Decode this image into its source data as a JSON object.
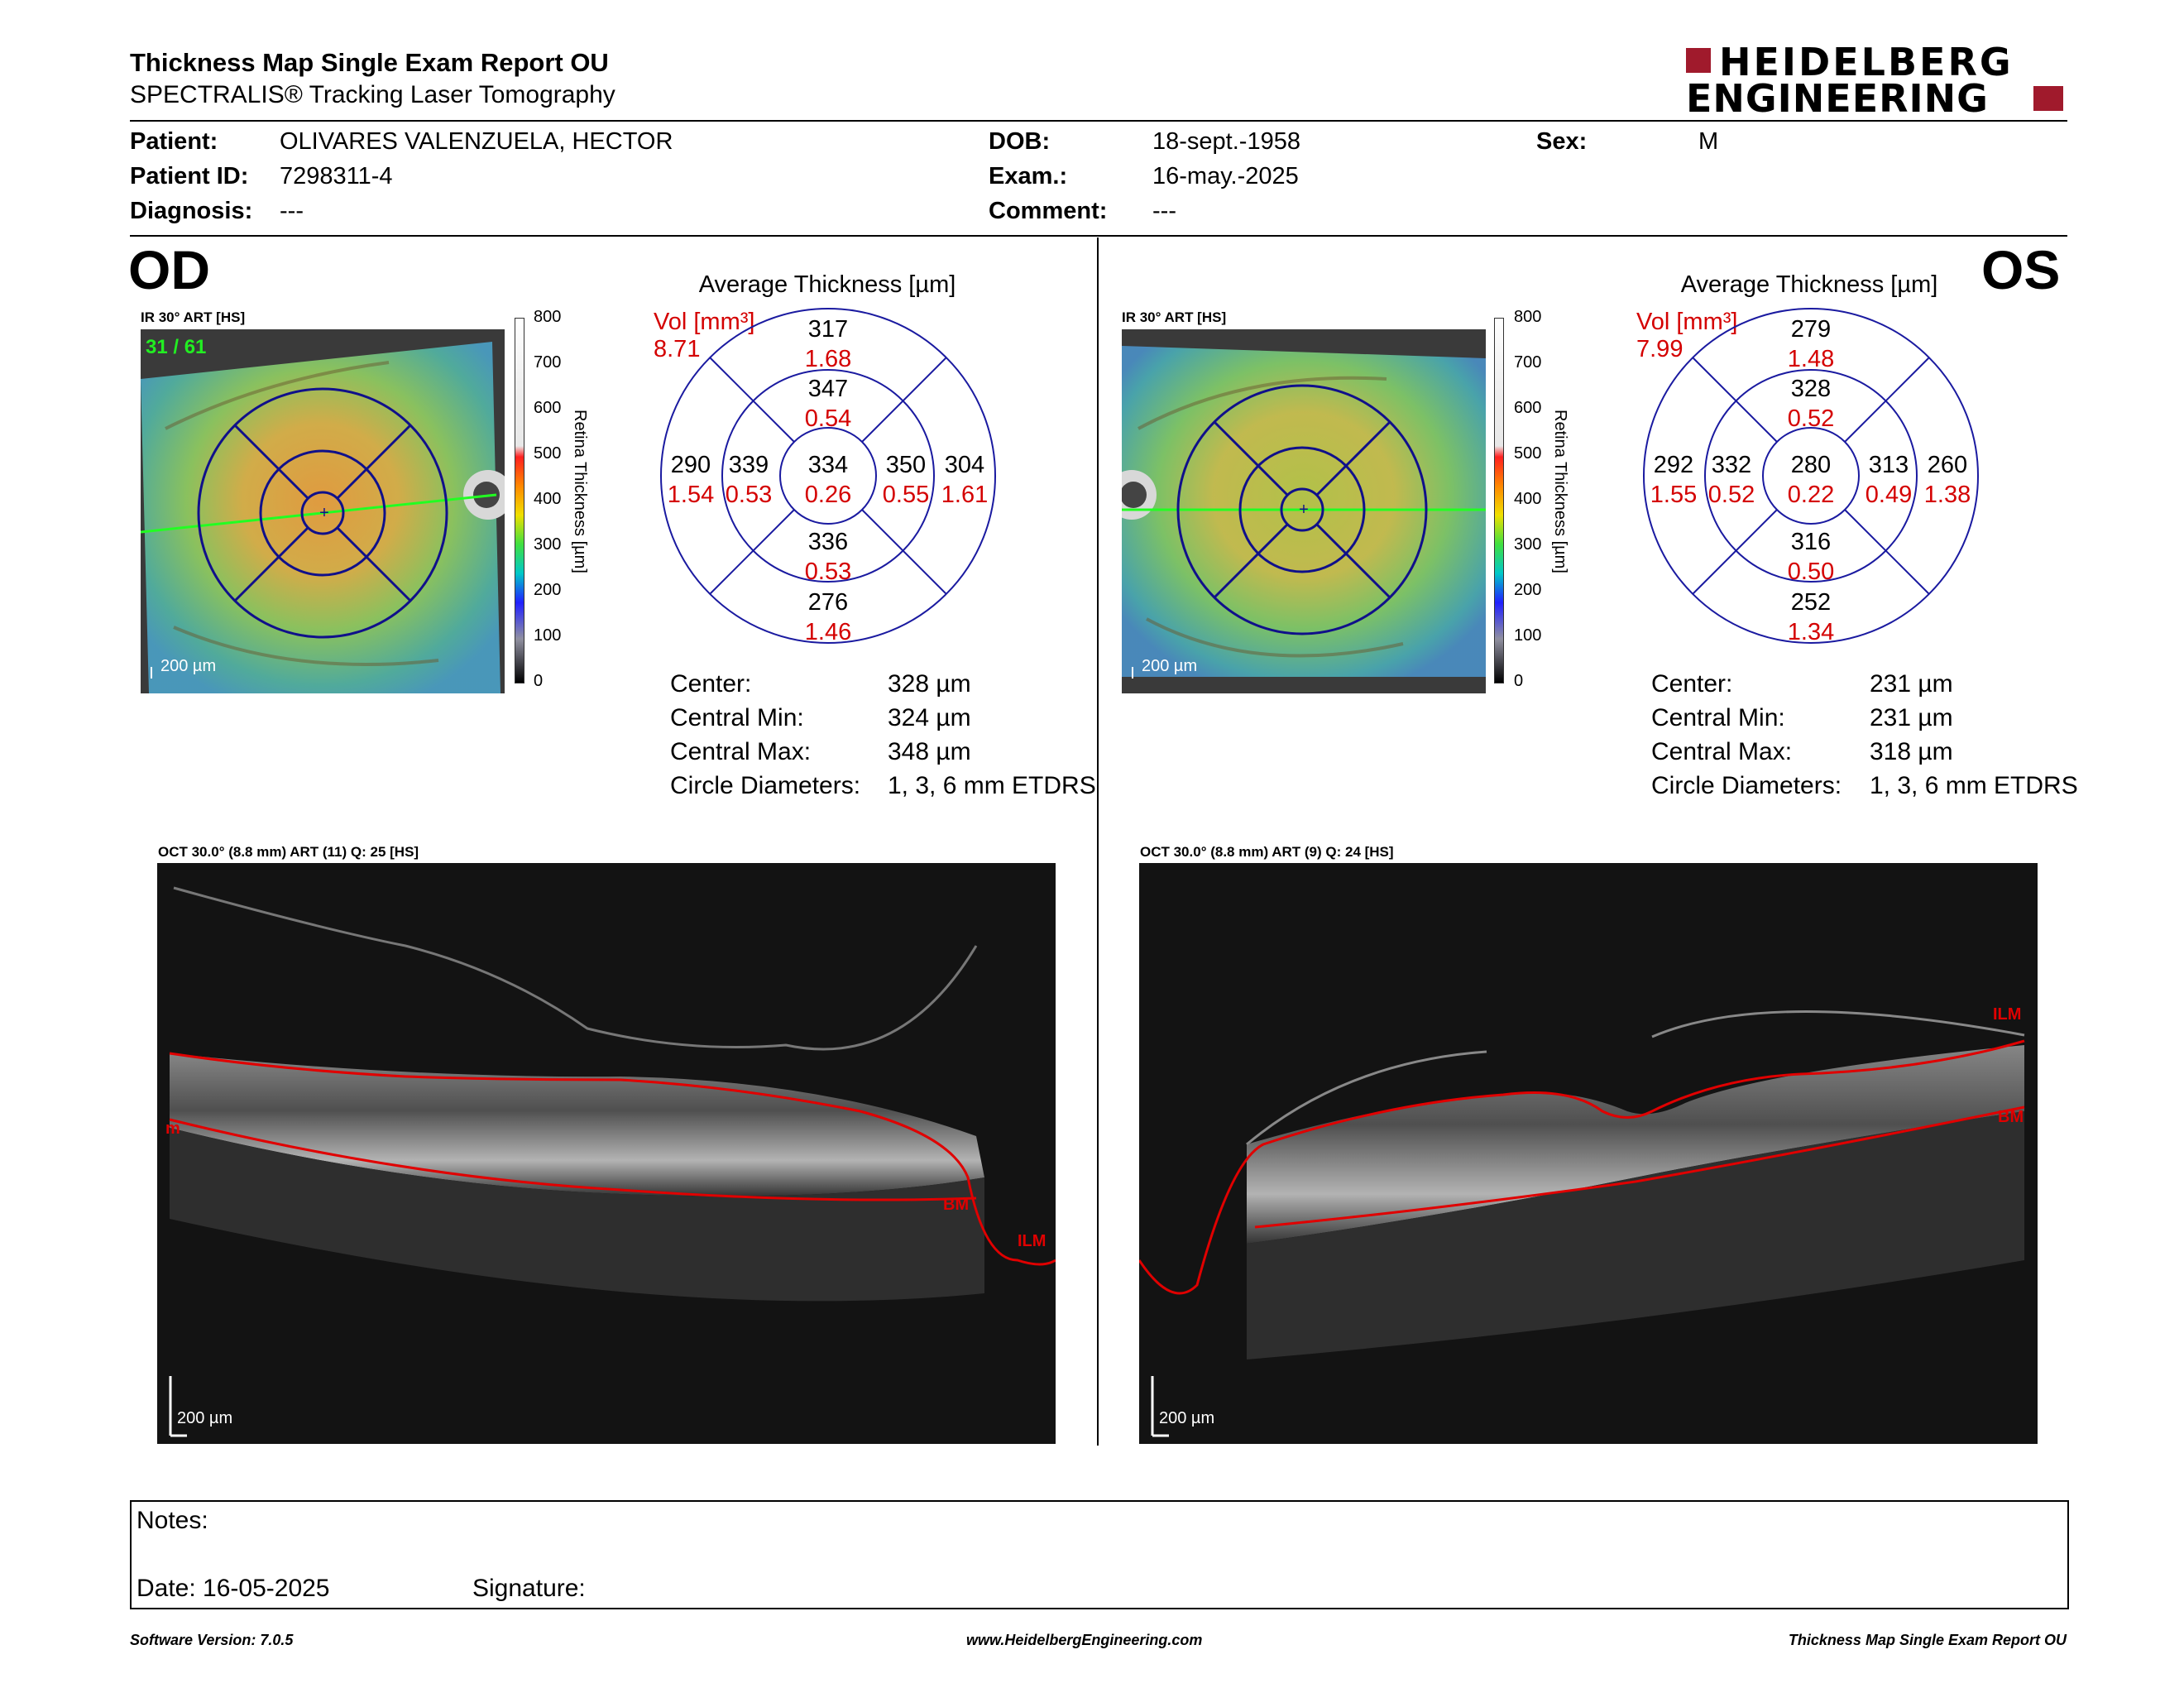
{
  "header": {
    "title": "Thickness Map Single Exam Report OU",
    "subtitle": "SPECTRALIS® Tracking Laser Tomography",
    "logo_line1": "HEIDELBERG",
    "logo_line2": "ENGINEERING"
  },
  "patient": {
    "patient_label": "Patient:",
    "patient_value": "OLIVARES VALENZUELA, HECTOR",
    "id_label": "Patient ID:",
    "id_value": "7298311-4",
    "diagnosis_label": "Diagnosis:",
    "diagnosis_value": "---",
    "dob_label": "DOB:",
    "dob_value": "18-sept.-1958",
    "exam_label": "Exam.:",
    "exam_value": "16-may.-2025",
    "comment_label": "Comment:",
    "comment_value": "---",
    "sex_label": "Sex:",
    "sex_value": "M"
  },
  "scale": {
    "ticks": [
      "800",
      "700",
      "600",
      "500",
      "400",
      "300",
      "200",
      "100",
      "0"
    ],
    "title": "Retina Thickness [µm]"
  },
  "od": {
    "eye": "OD",
    "ir_label": "IR 30° ART [HS]",
    "frame_counter": "31 / 61",
    "ir_scalebar": "200 µm",
    "avg_title": "Average Thickness [µm]",
    "vol_label": "Vol [mm³]",
    "vol_value": "8.71",
    "sectors": {
      "outer_top": {
        "t": "317",
        "v": "1.68"
      },
      "inner_top": {
        "t": "347",
        "v": "0.54"
      },
      "outer_left": {
        "t": "290",
        "v": "1.54"
      },
      "inner_left": {
        "t": "339",
        "v": "0.53"
      },
      "center": {
        "t": "334",
        "v": "0.26"
      },
      "inner_right": {
        "t": "350",
        "v": "0.55"
      },
      "outer_right": {
        "t": "304",
        "v": "1.61"
      },
      "inner_bottom": {
        "t": "336",
        "v": "0.53"
      },
      "outer_bottom": {
        "t": "276",
        "v": "1.46"
      }
    },
    "stats": {
      "center_label": "Center:",
      "center_value": "328 µm",
      "min_label": "Central Min:",
      "min_value": "324 µm",
      "max_label": "Central Max:",
      "max_value": "348 µm",
      "diam_label": "Circle Diameters:",
      "diam_value": "1, 3, 6 mm ETDRS"
    },
    "oct_label": "OCT 30.0° (8.8 mm) ART (11) Q: 25 [HS]",
    "oct_scalebar": "200 µm",
    "oct_tags": {
      "ilm": "ILM",
      "bm": "BM",
      "cut": "m"
    }
  },
  "os": {
    "eye": "OS",
    "ir_label": "IR 30° ART [HS]",
    "ir_scalebar": "200 µm",
    "avg_title": "Average Thickness [µm]",
    "vol_label": "Vol [mm³]",
    "vol_value": "7.99",
    "sectors": {
      "outer_top": {
        "t": "279",
        "v": "1.48"
      },
      "inner_top": {
        "t": "328",
        "v": "0.52"
      },
      "outer_left": {
        "t": "292",
        "v": "1.55"
      },
      "inner_left": {
        "t": "332",
        "v": "0.52"
      },
      "center": {
        "t": "280",
        "v": "0.22"
      },
      "inner_right": {
        "t": "313",
        "v": "0.49"
      },
      "outer_right": {
        "t": "260",
        "v": "1.38"
      },
      "inner_bottom": {
        "t": "316",
        "v": "0.50"
      },
      "outer_bottom": {
        "t": "252",
        "v": "1.34"
      }
    },
    "stats": {
      "center_label": "Center:",
      "center_value": "231 µm",
      "min_label": "Central Min:",
      "min_value": "231 µm",
      "max_label": "Central Max:",
      "max_value": "318 µm",
      "diam_label": "Circle Diameters:",
      "diam_value": "1, 3, 6 mm ETDRS"
    },
    "oct_label": "OCT 30.0° (8.8 mm) ART (9) Q: 24 [HS]",
    "oct_scalebar": "200 µm",
    "oct_tags": {
      "ilm": "ILM",
      "bm": "BM"
    }
  },
  "notes": {
    "notes_label": "Notes:",
    "date_label": "Date: 16-05-2025",
    "signature_label": "Signature:"
  },
  "footer": {
    "software": "Software Version: 7.0.5",
    "website": "www.HeidelbergEngineering.com",
    "report_name": "Thickness Map Single Exam Report OU"
  },
  "colors": {
    "accent_red": "#d40000",
    "logo_red": "#a01a2c",
    "etdrs_blue": "#1a1aa0"
  }
}
